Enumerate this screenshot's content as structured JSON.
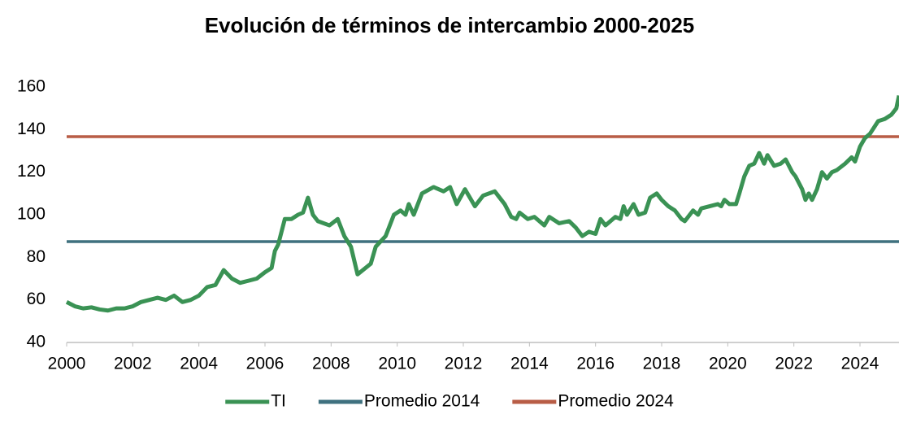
{
  "chart_data": {
    "type": "line",
    "title": "Evolución de términos de intercambio 2000-2025",
    "xlim": [
      2000,
      2025.18
    ],
    "xticks": [
      2000,
      2002,
      2004,
      2006,
      2008,
      2010,
      2012,
      2014,
      2016,
      2018,
      2020,
      2022,
      2024
    ],
    "ylim": [
      40,
      160
    ],
    "yticks": [
      40,
      60,
      80,
      100,
      120,
      140,
      160
    ],
    "legend": "bottom",
    "x": [
      2000,
      2000.25,
      2000.5,
      2000.75,
      2001,
      2001.25,
      2001.5,
      2001.75,
      2002,
      2002.25,
      2002.5,
      2002.75,
      2003,
      2003.25,
      2003.5,
      2003.75,
      2004,
      2004.25,
      2004.5,
      2004.75,
      2005,
      2005.25,
      2005.5,
      2005.75,
      2006,
      2006.2,
      2006.3,
      2006.4,
      2006.6,
      2006.8,
      2007.0,
      2007.15,
      2007.3,
      2007.45,
      2007.6,
      2007.95,
      2008.2,
      2008.4,
      2008.6,
      2008.8,
      2009.2,
      2009.35,
      2009.65,
      2009.9,
      2010.1,
      2010.25,
      2010.35,
      2010.5,
      2010.75,
      2011.1,
      2011.4,
      2011.6,
      2011.8,
      2012.05,
      2012.35,
      2012.6,
      2012.95,
      2013.25,
      2013.45,
      2013.6,
      2013.7,
      2013.95,
      2014.15,
      2014.45,
      2014.6,
      2014.9,
      2015.2,
      2015.4,
      2015.6,
      2015.8,
      2016,
      2016.15,
      2016.3,
      2016.6,
      2016.75,
      2016.85,
      2016.95,
      2017.15,
      2017.3,
      2017.5,
      2017.65,
      2017.85,
      2018,
      2018.2,
      2018.4,
      2018.6,
      2018.7,
      2018.85,
      2018.95,
      2019.1,
      2019.2,
      2019.45,
      2019.7,
      2019.8,
      2019.9,
      2020.05,
      2020.25,
      2020.35,
      2020.5,
      2020.65,
      2020.8,
      2020.95,
      2021.1,
      2021.2,
      2021.4,
      2021.6,
      2021.75,
      2021.95,
      2022.05,
      2022.25,
      2022.35,
      2022.45,
      2022.55,
      2022.7,
      2022.85,
      2023,
      2023.15,
      2023.3,
      2023.55,
      2023.75,
      2023.85,
      2024,
      2024.15,
      2024.3,
      2024.55,
      2024.75,
      2024.95,
      2025.1,
      2025.18
    ],
    "series": [
      {
        "name": "TI",
        "color": "#3a9254",
        "values": [
          59,
          57,
          56,
          56.5,
          55.5,
          55,
          56,
          56,
          57,
          59,
          60,
          61,
          60,
          62,
          59,
          60,
          62,
          66,
          67,
          74,
          70,
          68,
          69,
          70,
          73,
          75,
          83,
          86,
          98,
          98,
          100,
          101,
          108,
          100,
          97,
          95,
          98,
          90,
          85,
          72,
          77,
          85,
          90,
          100,
          102,
          100,
          105,
          100,
          110,
          113,
          111,
          113,
          105,
          112,
          104,
          109,
          111,
          105,
          99,
          98,
          101,
          98,
          99,
          95,
          99,
          96,
          97,
          94,
          90,
          92,
          91,
          98,
          95,
          99,
          98,
          104,
          100,
          105,
          100,
          101,
          108,
          110,
          107,
          104,
          102,
          98,
          97,
          100,
          102,
          100,
          103,
          104,
          105,
          104,
          107,
          105,
          105,
          110,
          118,
          123,
          124,
          129,
          124,
          128,
          123,
          124,
          126,
          120,
          118,
          112,
          107,
          110,
          107,
          112,
          120,
          117,
          120,
          121,
          124,
          127,
          125,
          132,
          136,
          138,
          144,
          145,
          147,
          150,
          156
        ]
      },
      {
        "name": "Promedio 2014",
        "color": "#3f717f",
        "value": 87.4
      },
      {
        "name": "Promedio 2024",
        "color": "#b85d46",
        "value": 136.7
      }
    ]
  }
}
